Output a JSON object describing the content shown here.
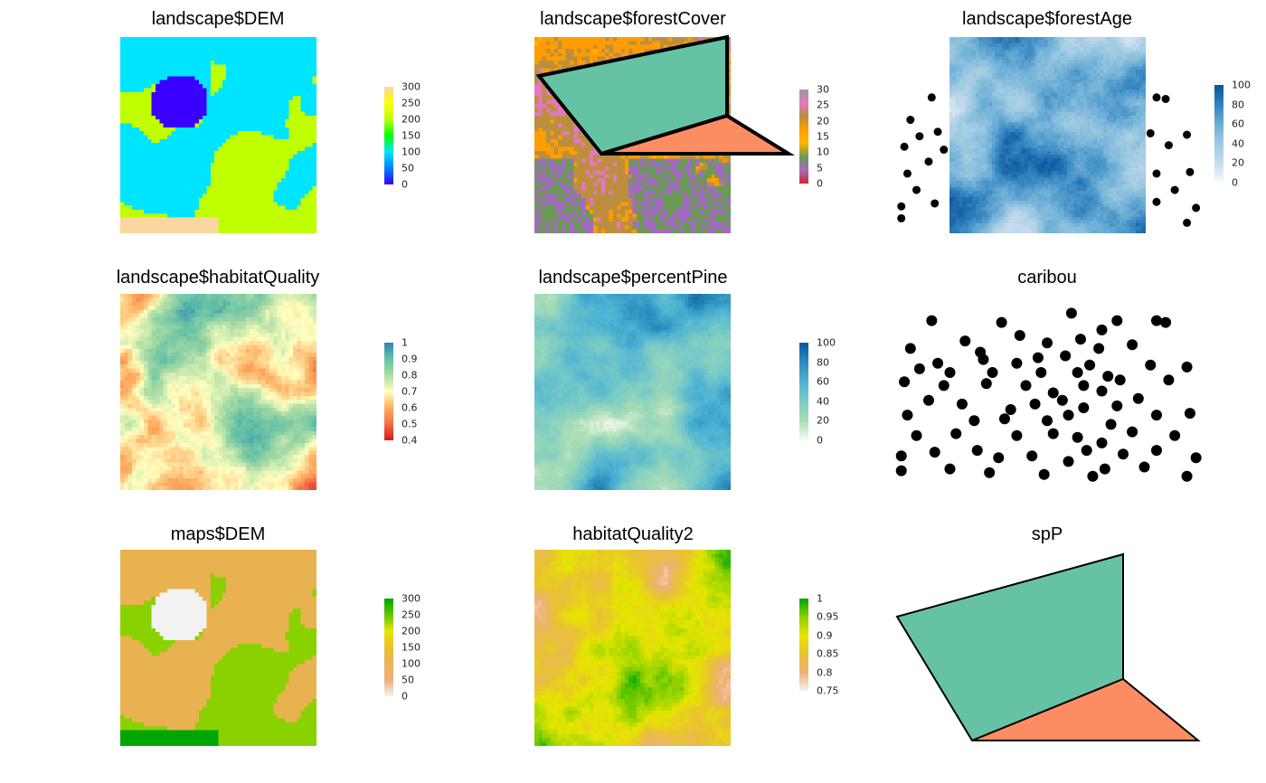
{
  "panels": [
    {
      "id": "dem",
      "title": "landscape$DEM",
      "legend": {
        "ticks": [
          "300",
          "250",
          "200",
          "150",
          "100",
          "50",
          "0"
        ],
        "colors": [
          "#fad7a0",
          "#ffff00",
          "#bfff00",
          "#00ff00",
          "#00e5ff",
          "#0080ff",
          "#3300ff"
        ]
      }
    },
    {
      "id": "forestCover",
      "title": "landscape$forestCover",
      "legend": {
        "ticks": [
          "30",
          "25",
          "20",
          "15",
          "10",
          "5",
          "0"
        ],
        "colors": [
          "#999999",
          "#e377c2",
          "#bc8f3f",
          "#ff9d00",
          "#ffb300",
          "#6a9b55",
          "#a36bc0",
          "#d62728"
        ]
      }
    },
    {
      "id": "forestAge",
      "title": "landscape$forestAge",
      "legend": {
        "ticks": [
          "100",
          "80",
          "60",
          "40",
          "20",
          "0"
        ],
        "colors": [
          "#08519c",
          "#3182bd",
          "#6baed6",
          "#9ecae1",
          "#c6dbef",
          "#f7fbff"
        ]
      }
    },
    {
      "id": "habitatQuality",
      "title": "landscape$habitatQuality",
      "legend": {
        "ticks": [
          "1",
          "0.9",
          "0.8",
          "0.7",
          "0.6",
          "0.5",
          "0.4"
        ],
        "colors": [
          "#2b83ba",
          "#66c2a5",
          "#abdda4",
          "#ffffbf",
          "#fdae61",
          "#f46d43",
          "#d7191c"
        ]
      }
    },
    {
      "id": "percentPine",
      "title": "landscape$percentPine",
      "legend": {
        "ticks": [
          "100",
          "80",
          "60",
          "40",
          "20",
          "0"
        ],
        "colors": [
          "#08589e",
          "#2b8cbe",
          "#4eb3d3",
          "#7bccc4",
          "#a8ddb5",
          "#f7fcf0"
        ]
      }
    },
    {
      "id": "caribou",
      "title": "caribou"
    },
    {
      "id": "mapsDem",
      "title": "maps$DEM",
      "legend": {
        "ticks": [
          "300",
          "250",
          "200",
          "150",
          "100",
          "50",
          "0"
        ],
        "colors": [
          "#00a600",
          "#63c600",
          "#e6e600",
          "#e8c32e",
          "#ebb25e",
          "#ecb176",
          "#f2f2f2"
        ]
      }
    },
    {
      "id": "habitatQuality2",
      "title": "habitatQuality2",
      "legend": {
        "ticks": [
          "1",
          "0.95",
          "0.9",
          "0.85",
          "0.8",
          "0.75"
        ],
        "colors": [
          "#00a600",
          "#8ad100",
          "#e6e600",
          "#e8c32e",
          "#ecb176",
          "#f2f2f2"
        ]
      }
    },
    {
      "id": "spP",
      "title": "spP"
    }
  ],
  "caribou_points": [
    [
      0.12,
      0.12
    ],
    [
      0.35,
      0.13
    ],
    [
      0.58,
      0.08
    ],
    [
      0.61,
      0.22
    ],
    [
      0.68,
      0.17
    ],
    [
      0.73,
      0.12
    ],
    [
      0.86,
      0.12
    ],
    [
      0.89,
      0.13
    ],
    [
      0.05,
      0.27
    ],
    [
      0.14,
      0.35
    ],
    [
      0.29,
      0.33
    ],
    [
      0.4,
      0.35
    ],
    [
      0.47,
      0.32
    ],
    [
      0.56,
      0.31
    ],
    [
      0.67,
      0.27
    ],
    [
      0.78,
      0.25
    ],
    [
      0.08,
      0.38
    ],
    [
      0.18,
      0.4
    ],
    [
      0.32,
      0.4
    ],
    [
      0.48,
      0.4
    ],
    [
      0.64,
      0.36
    ],
    [
      0.7,
      0.42
    ],
    [
      0.84,
      0.36
    ],
    [
      0.96,
      0.37
    ],
    [
      0.03,
      0.45
    ],
    [
      0.16,
      0.47
    ],
    [
      0.3,
      0.46
    ],
    [
      0.43,
      0.47
    ],
    [
      0.52,
      0.51
    ],
    [
      0.62,
      0.47
    ],
    [
      0.68,
      0.5
    ],
    [
      0.9,
      0.44
    ],
    [
      0.11,
      0.55
    ],
    [
      0.22,
      0.57
    ],
    [
      0.38,
      0.6
    ],
    [
      0.46,
      0.57
    ],
    [
      0.55,
      0.55
    ],
    [
      0.62,
      0.59
    ],
    [
      0.73,
      0.58
    ],
    [
      0.8,
      0.54
    ],
    [
      0.04,
      0.63
    ],
    [
      0.26,
      0.66
    ],
    [
      0.36,
      0.65
    ],
    [
      0.5,
      0.66
    ],
    [
      0.57,
      0.63
    ],
    [
      0.71,
      0.68
    ],
    [
      0.86,
      0.63
    ],
    [
      0.97,
      0.62
    ],
    [
      0.07,
      0.74
    ],
    [
      0.2,
      0.73
    ],
    [
      0.4,
      0.74
    ],
    [
      0.52,
      0.73
    ],
    [
      0.6,
      0.75
    ],
    [
      0.68,
      0.78
    ],
    [
      0.78,
      0.72
    ],
    [
      0.92,
      0.74
    ],
    [
      0.02,
      0.85
    ],
    [
      0.13,
      0.83
    ],
    [
      0.27,
      0.82
    ],
    [
      0.34,
      0.86
    ],
    [
      0.45,
      0.85
    ],
    [
      0.57,
      0.88
    ],
    [
      0.63,
      0.82
    ],
    [
      0.75,
      0.84
    ],
    [
      0.86,
      0.82
    ],
    [
      0.99,
      0.86
    ],
    [
      0.02,
      0.93
    ],
    [
      0.18,
      0.92
    ],
    [
      0.31,
      0.94
    ],
    [
      0.49,
      0.95
    ],
    [
      0.65,
      0.96
    ],
    [
      0.69,
      0.92
    ],
    [
      0.82,
      0.91
    ],
    [
      0.96,
      0.96
    ],
    [
      0.41,
      0.2
    ],
    [
      0.5,
      0.24
    ],
    [
      0.23,
      0.23
    ],
    [
      0.28,
      0.29
    ],
    [
      0.6,
      0.4
    ],
    [
      0.74,
      0.44
    ]
  ]
}
